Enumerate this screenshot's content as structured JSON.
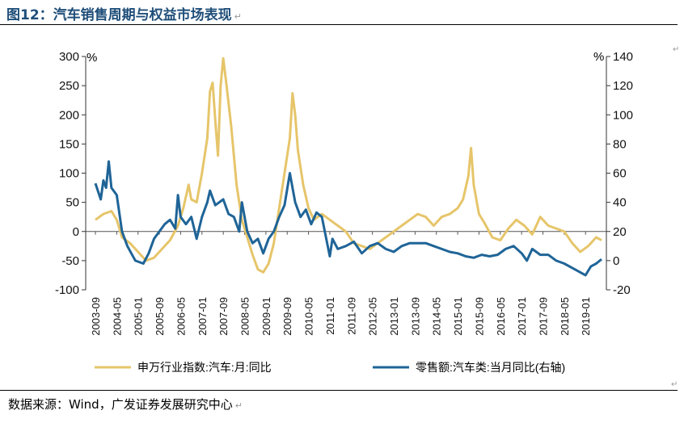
{
  "title": "图12：汽车销售周期与权益市场表现",
  "source": "数据来源：Wind，广发证券发展研究中心",
  "colors": {
    "left_series": "#E6C56A",
    "right_series": "#1F6497",
    "title": "#1F4E79"
  },
  "chart_data": {
    "type": "line",
    "left_axis": {
      "unit": "%",
      "ylim": [
        -100,
        300
      ],
      "ticks": [
        -100,
        -50,
        0,
        50,
        100,
        150,
        200,
        250,
        300
      ]
    },
    "right_axis": {
      "unit": "%",
      "ylim": [
        -20,
        140
      ],
      "ticks": [
        -20,
        0,
        20,
        40,
        60,
        80,
        100,
        120,
        140
      ]
    },
    "x_range": [
      "2003-09",
      "2019-07"
    ],
    "x_ticks": [
      "2003-09",
      "2004-05",
      "2005-01",
      "2005-09",
      "2006-05",
      "2007-01",
      "2007-09",
      "2008-05",
      "2009-01",
      "2009-09",
      "2010-05",
      "2011-01",
      "2011-09",
      "2012-05",
      "2013-01",
      "2013-09",
      "2014-05",
      "2015-01",
      "2015-09",
      "2016-05",
      "2017-01",
      "2017-09",
      "2018-05",
      "2019-01"
    ],
    "grid": false,
    "legend_position": "bottom",
    "series": [
      {
        "name": "申万行业指数:汽车:月:同比",
        "axis": "left",
        "points": [
          [
            "2003-09",
            20
          ],
          [
            "2003-12",
            30
          ],
          [
            "2004-03",
            35
          ],
          [
            "2004-05",
            20
          ],
          [
            "2004-07",
            -10
          ],
          [
            "2004-10",
            -20
          ],
          [
            "2005-01",
            -35
          ],
          [
            "2005-04",
            -50
          ],
          [
            "2005-07",
            -45
          ],
          [
            "2005-10",
            -30
          ],
          [
            "2006-01",
            -15
          ],
          [
            "2006-04",
            10
          ],
          [
            "2006-06",
            40
          ],
          [
            "2006-08",
            80
          ],
          [
            "2006-09",
            55
          ],
          [
            "2006-11",
            50
          ],
          [
            "2007-01",
            100
          ],
          [
            "2007-03",
            160
          ],
          [
            "2007-04",
            240
          ],
          [
            "2007-05",
            255
          ],
          [
            "2007-06",
            190
          ],
          [
            "2007-07",
            130
          ],
          [
            "2007-08",
            250
          ],
          [
            "2007-09",
            297
          ],
          [
            "2007-10",
            260
          ],
          [
            "2007-12",
            180
          ],
          [
            "2008-02",
            80
          ],
          [
            "2008-04",
            20
          ],
          [
            "2008-06",
            -10
          ],
          [
            "2008-08",
            -40
          ],
          [
            "2008-10",
            -65
          ],
          [
            "2008-12",
            -70
          ],
          [
            "2009-02",
            -55
          ],
          [
            "2009-04",
            -20
          ],
          [
            "2009-06",
            40
          ],
          [
            "2009-08",
            100
          ],
          [
            "2009-10",
            160
          ],
          [
            "2009-11",
            237
          ],
          [
            "2009-12",
            200
          ],
          [
            "2010-01",
            140
          ],
          [
            "2010-03",
            80
          ],
          [
            "2010-05",
            40
          ],
          [
            "2010-07",
            20
          ],
          [
            "2010-10",
            30
          ],
          [
            "2011-01",
            20
          ],
          [
            "2011-04",
            10
          ],
          [
            "2011-07",
            0
          ],
          [
            "2011-10",
            -20
          ],
          [
            "2012-01",
            -25
          ],
          [
            "2012-04",
            -30
          ],
          [
            "2012-07",
            -20
          ],
          [
            "2012-10",
            -10
          ],
          [
            "2013-01",
            0
          ],
          [
            "2013-04",
            10
          ],
          [
            "2013-07",
            20
          ],
          [
            "2013-10",
            30
          ],
          [
            "2014-01",
            25
          ],
          [
            "2014-04",
            10
          ],
          [
            "2014-07",
            25
          ],
          [
            "2014-10",
            30
          ],
          [
            "2015-01",
            40
          ],
          [
            "2015-03",
            55
          ],
          [
            "2015-05",
            95
          ],
          [
            "2015-06",
            143
          ],
          [
            "2015-07",
            80
          ],
          [
            "2015-09",
            30
          ],
          [
            "2015-11",
            15
          ],
          [
            "2016-02",
            -10
          ],
          [
            "2016-05",
            -15
          ],
          [
            "2016-08",
            5
          ],
          [
            "2016-11",
            20
          ],
          [
            "2017-02",
            10
          ],
          [
            "2017-05",
            -5
          ],
          [
            "2017-08",
            25
          ],
          [
            "2017-11",
            10
          ],
          [
            "2018-02",
            5
          ],
          [
            "2018-05",
            0
          ],
          [
            "2018-08",
            -20
          ],
          [
            "2018-11",
            -35
          ],
          [
            "2019-02",
            -25
          ],
          [
            "2019-05",
            -10
          ],
          [
            "2019-07",
            -15
          ]
        ]
      },
      {
        "name": "零售额:汽车类:当月同比(右轴)",
        "axis": "right",
        "points": [
          [
            "2003-09",
            53
          ],
          [
            "2003-11",
            42
          ],
          [
            "2003-12",
            55
          ],
          [
            "2004-01",
            50
          ],
          [
            "2004-02",
            68
          ],
          [
            "2004-03",
            50
          ],
          [
            "2004-05",
            45
          ],
          [
            "2004-07",
            20
          ],
          [
            "2004-09",
            10
          ],
          [
            "2004-12",
            0
          ],
          [
            "2005-03",
            -2
          ],
          [
            "2005-05",
            5
          ],
          [
            "2005-07",
            15
          ],
          [
            "2005-09",
            20
          ],
          [
            "2005-11",
            25
          ],
          [
            "2006-01",
            28
          ],
          [
            "2006-03",
            22
          ],
          [
            "2006-04",
            45
          ],
          [
            "2006-05",
            30
          ],
          [
            "2006-07",
            25
          ],
          [
            "2006-09",
            30
          ],
          [
            "2006-11",
            15
          ],
          [
            "2007-01",
            30
          ],
          [
            "2007-03",
            40
          ],
          [
            "2007-04",
            48
          ],
          [
            "2007-06",
            38
          ],
          [
            "2007-09",
            42
          ],
          [
            "2007-11",
            32
          ],
          [
            "2008-01",
            30
          ],
          [
            "2008-03",
            20
          ],
          [
            "2008-04",
            40
          ],
          [
            "2008-06",
            20
          ],
          [
            "2008-08",
            12
          ],
          [
            "2008-10",
            15
          ],
          [
            "2008-12",
            5
          ],
          [
            "2009-02",
            15
          ],
          [
            "2009-04",
            20
          ],
          [
            "2009-06",
            30
          ],
          [
            "2009-08",
            38
          ],
          [
            "2009-10",
            60
          ],
          [
            "2009-11",
            50
          ],
          [
            "2009-12",
            40
          ],
          [
            "2010-02",
            30
          ],
          [
            "2010-04",
            35
          ],
          [
            "2010-06",
            25
          ],
          [
            "2010-08",
            33
          ],
          [
            "2010-10",
            30
          ],
          [
            "2011-01",
            3
          ],
          [
            "2011-02",
            15
          ],
          [
            "2011-04",
            8
          ],
          [
            "2011-07",
            10
          ],
          [
            "2011-10",
            13
          ],
          [
            "2012-01",
            5
          ],
          [
            "2012-04",
            10
          ],
          [
            "2012-07",
            12
          ],
          [
            "2012-10",
            8
          ],
          [
            "2013-01",
            6
          ],
          [
            "2013-04",
            10
          ],
          [
            "2013-07",
            12
          ],
          [
            "2013-10",
            12
          ],
          [
            "2014-01",
            12
          ],
          [
            "2014-04",
            10
          ],
          [
            "2014-07",
            8
          ],
          [
            "2014-10",
            6
          ],
          [
            "2015-01",
            5
          ],
          [
            "2015-04",
            3
          ],
          [
            "2015-07",
            2
          ],
          [
            "2015-10",
            4
          ],
          [
            "2016-01",
            3
          ],
          [
            "2016-04",
            4
          ],
          [
            "2016-07",
            8
          ],
          [
            "2016-10",
            10
          ],
          [
            "2017-01",
            5
          ],
          [
            "2017-03",
            0
          ],
          [
            "2017-05",
            8
          ],
          [
            "2017-08",
            4
          ],
          [
            "2017-11",
            4
          ],
          [
            "2018-02",
            0
          ],
          [
            "2018-05",
            -2
          ],
          [
            "2018-08",
            -5
          ],
          [
            "2018-11",
            -8
          ],
          [
            "2019-01",
            -10
          ],
          [
            "2019-03",
            -4
          ],
          [
            "2019-05",
            -2
          ],
          [
            "2019-07",
            1
          ]
        ]
      }
    ]
  }
}
